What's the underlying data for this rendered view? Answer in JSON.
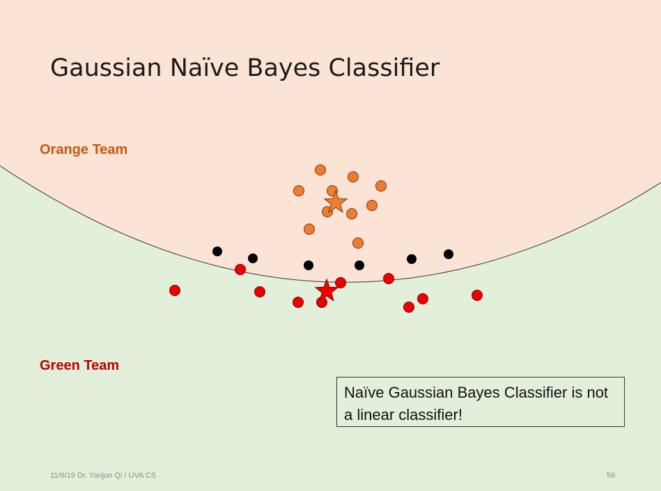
{
  "slide": {
    "title": "Gaussian Naïve Bayes Classifier",
    "orange_label": "Orange Team",
    "green_label": "Green Team",
    "note": "Naïve Gaussian Bayes Classifier is not a linear classifier!",
    "footer_left": "11/6/19 Dr. Yanjun Qi / UVA CS",
    "page_number": "56"
  },
  "colors": {
    "orange_region": "#fbe3d6",
    "green_region": "#e2efda",
    "orange_point": "#ed7d31",
    "red_point": "#ee0000",
    "boundary_point": "#000000",
    "orange_label": "#c55a11",
    "green_label": "#c00000"
  }
}
